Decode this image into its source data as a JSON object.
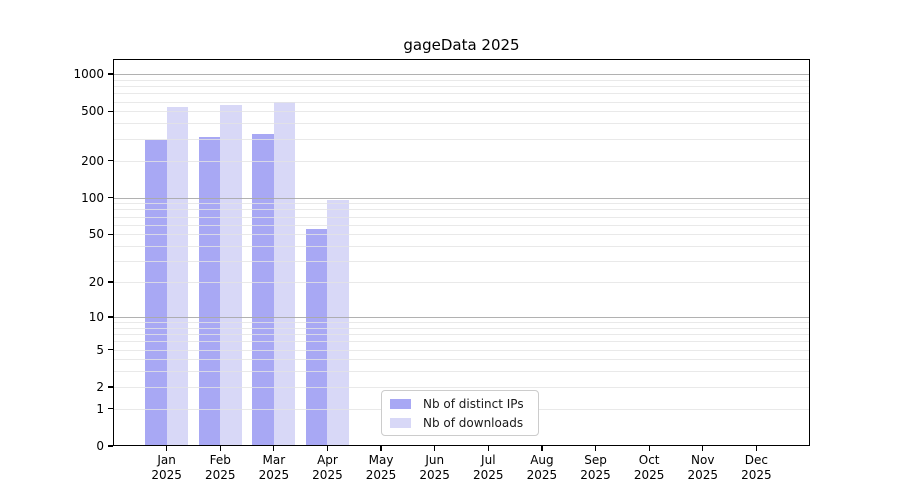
{
  "title": "gageData 2025",
  "colors": {
    "bar_distinct_ips": "#a8a8f4",
    "bar_downloads": "#d8d8f7",
    "major_gridline": "#a8a8a8",
    "minor_gridline": "#e4e4e4",
    "axis": "#000000",
    "legend_border": "#cccccc"
  },
  "legend": {
    "items": [
      {
        "label": "Nb of distinct IPs",
        "color": "#a8a8f4"
      },
      {
        "label": "Nb of downloads",
        "color": "#d8d8f7"
      }
    ]
  },
  "chart_data": {
    "type": "bar",
    "title": "gageData 2025",
    "categories": [
      "Jan",
      "Feb",
      "Mar",
      "Apr",
      "May",
      "Jun",
      "Jul",
      "Aug",
      "Sep",
      "Oct",
      "Nov",
      "Dec"
    ],
    "category_year": "2025",
    "series": [
      {
        "name": "Nb of distinct IPs",
        "color": "#a8a8f4",
        "values": [
          295,
          310,
          330,
          55,
          0,
          0,
          0,
          0,
          0,
          0,
          0,
          0
        ]
      },
      {
        "name": "Nb of downloads",
        "color": "#d8d8f7",
        "values": [
          545,
          565,
          600,
          95,
          0,
          0,
          0,
          0,
          0,
          0,
          0,
          0
        ]
      }
    ],
    "xlabel": "",
    "ylabel": "",
    "yscale": "log10(value+1)",
    "ylim": [
      0,
      1325
    ],
    "y_ticks": [
      1000,
      500,
      200,
      100,
      50,
      20,
      10,
      5,
      2,
      1,
      0
    ],
    "major_gridlines": [
      10,
      100,
      1000
    ],
    "minor_gridlines": [
      1,
      2,
      3,
      4,
      5,
      6,
      7,
      8,
      9,
      20,
      30,
      40,
      50,
      60,
      70,
      80,
      90,
      200,
      300,
      400,
      500,
      600,
      700,
      800,
      900
    ],
    "grid": true,
    "legend_position": "lower-center-inside"
  }
}
